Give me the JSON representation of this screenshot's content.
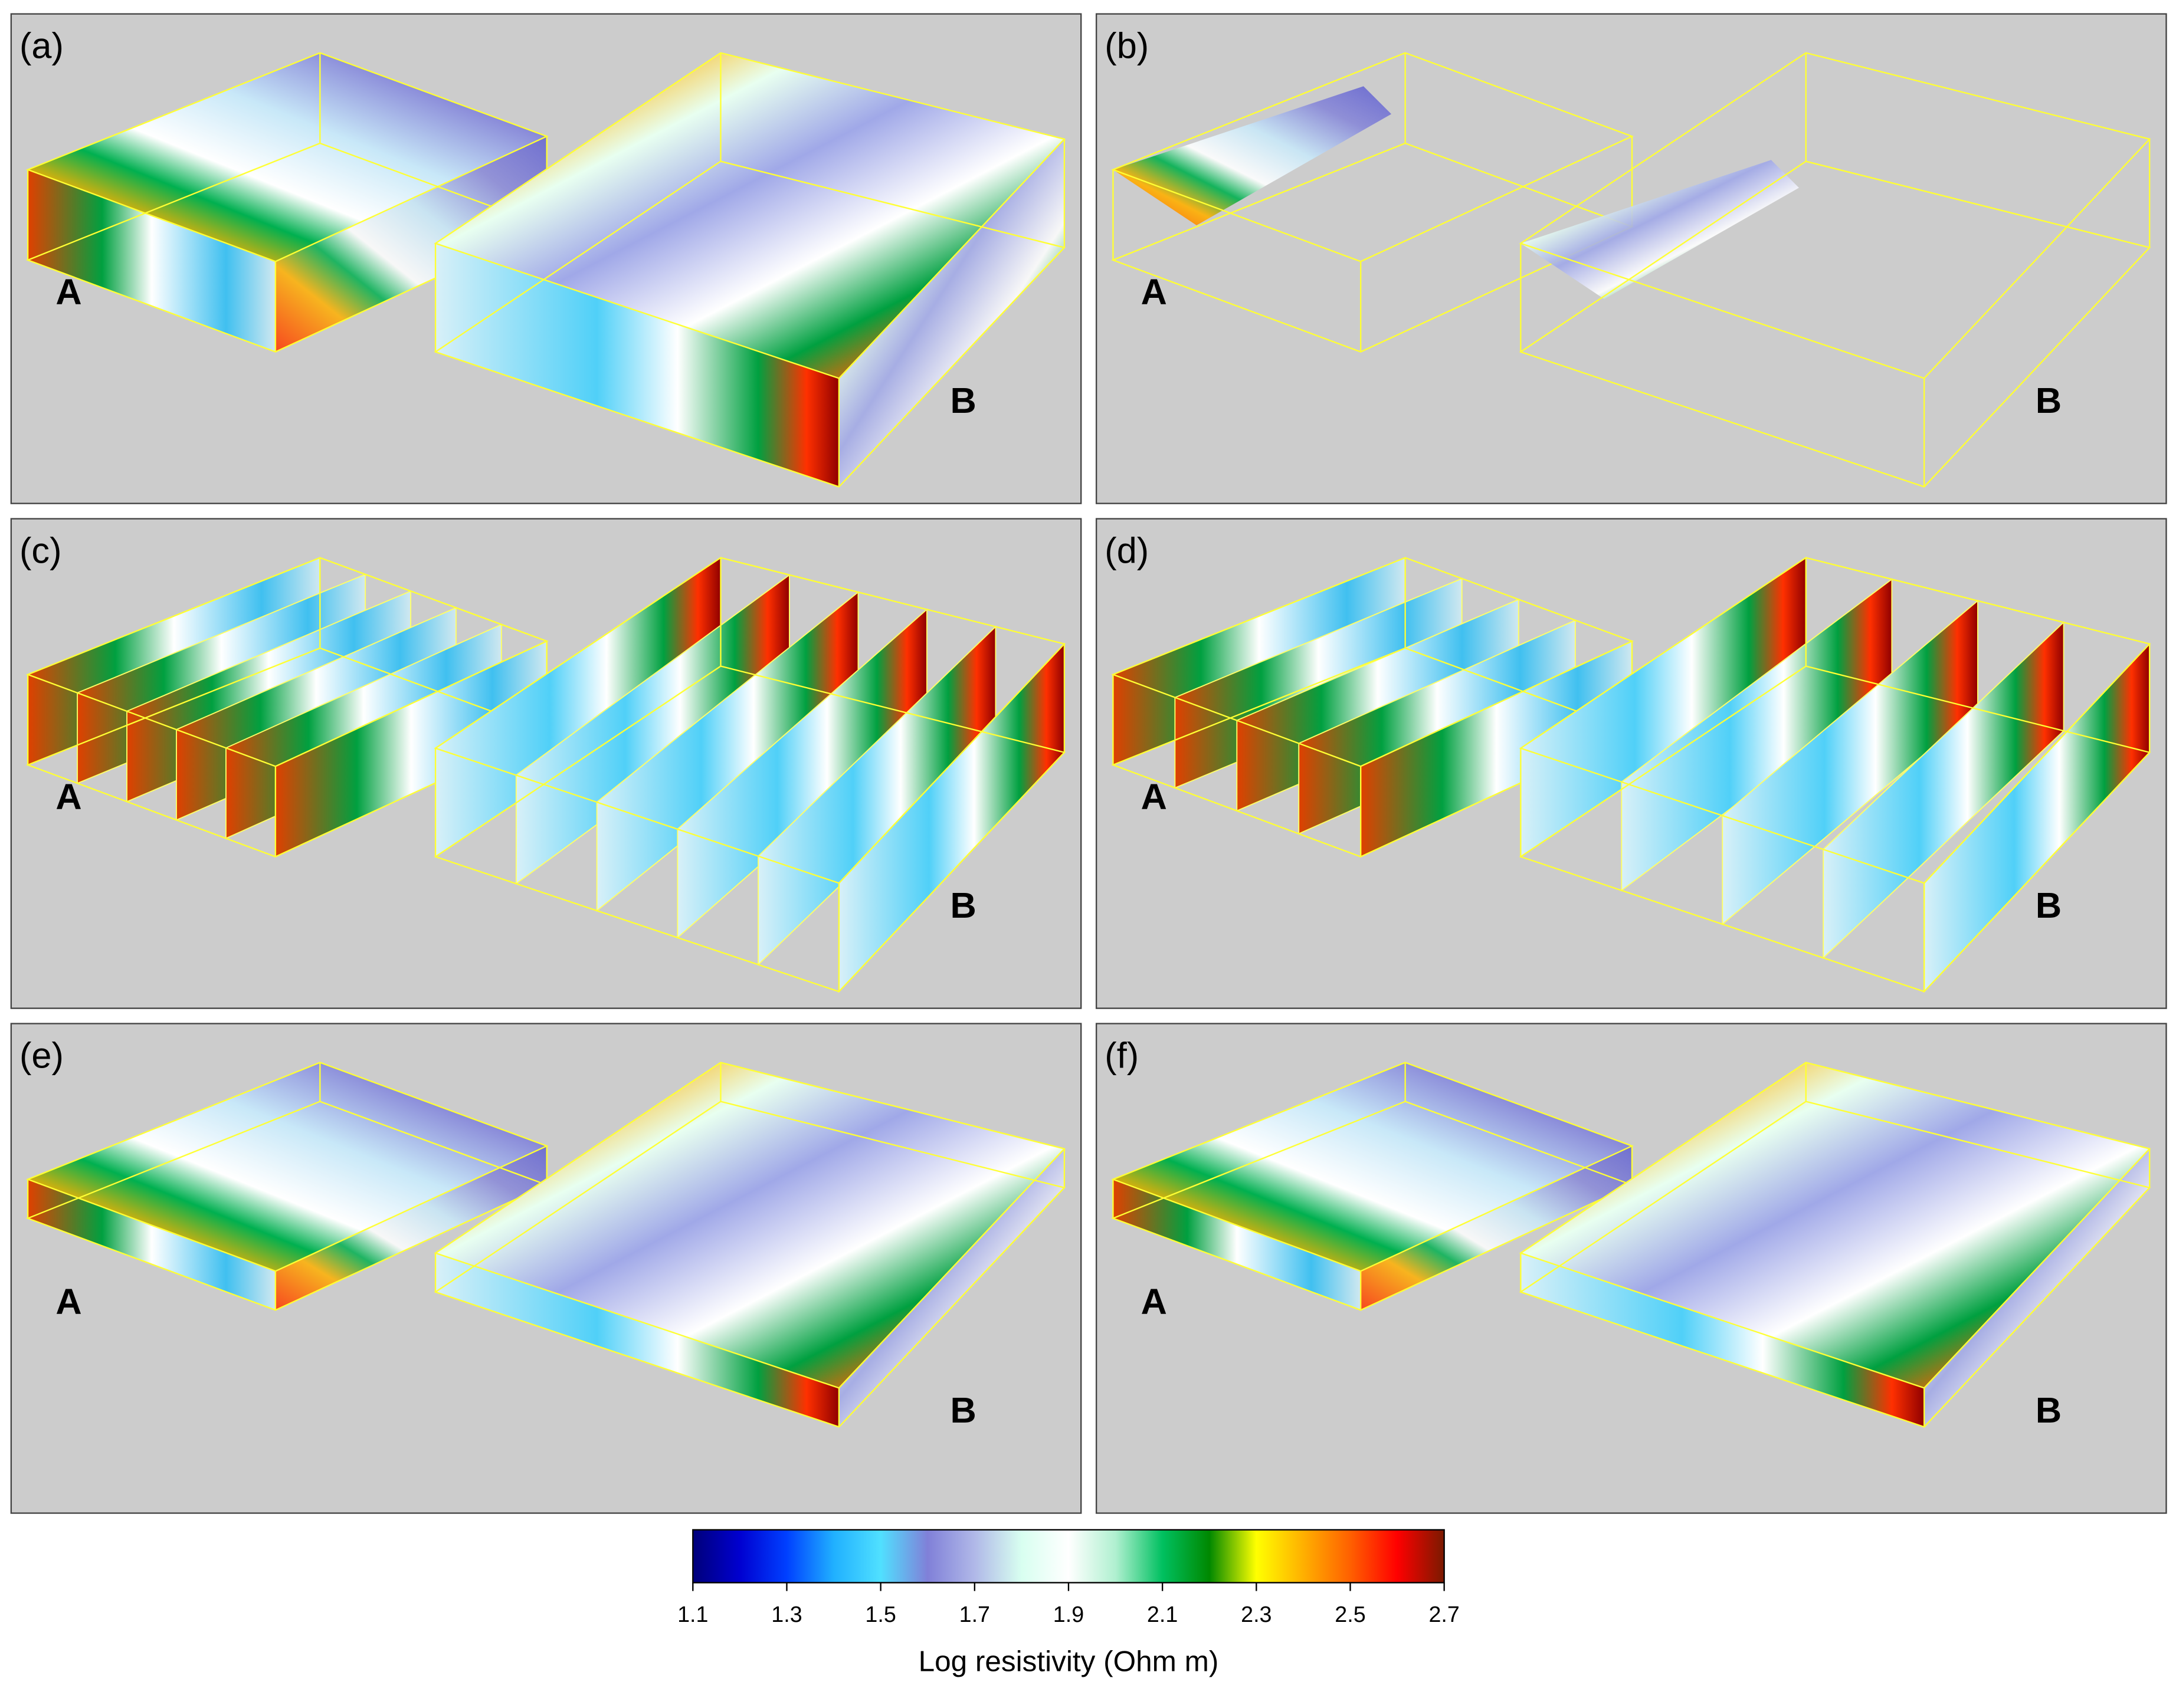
{
  "panels": [
    {
      "label": "(a)",
      "markers": [
        "A",
        "B"
      ]
    },
    {
      "label": "(b)",
      "markers": [
        "A",
        "B"
      ]
    },
    {
      "label": "(c)",
      "markers": [
        "A",
        "B"
      ]
    },
    {
      "label": "(d)",
      "markers": [
        "A",
        "B"
      ]
    },
    {
      "label": "(e)",
      "markers": [
        "A",
        "B"
      ]
    },
    {
      "label": "(f)",
      "markers": [
        "A",
        "B"
      ]
    }
  ],
  "colorbar": {
    "label": "Log resistivity (Ohm m)",
    "range": [
      1.1,
      2.7
    ],
    "ticks": [
      1.1,
      1.3,
      1.5,
      1.7,
      1.9,
      2.1,
      2.3,
      2.5,
      2.7
    ],
    "colors": [
      "#00007a",
      "#0000d0",
      "#0040ff",
      "#20b0ff",
      "#50e0ff",
      "#8080d8",
      "#b0b8e8",
      "#d8fff0",
      "#ffffff",
      "#b0f0d0",
      "#00c060",
      "#008800",
      "#ffff00",
      "#ffb000",
      "#ff6000",
      "#ff0000",
      "#7a1a00"
    ]
  }
}
